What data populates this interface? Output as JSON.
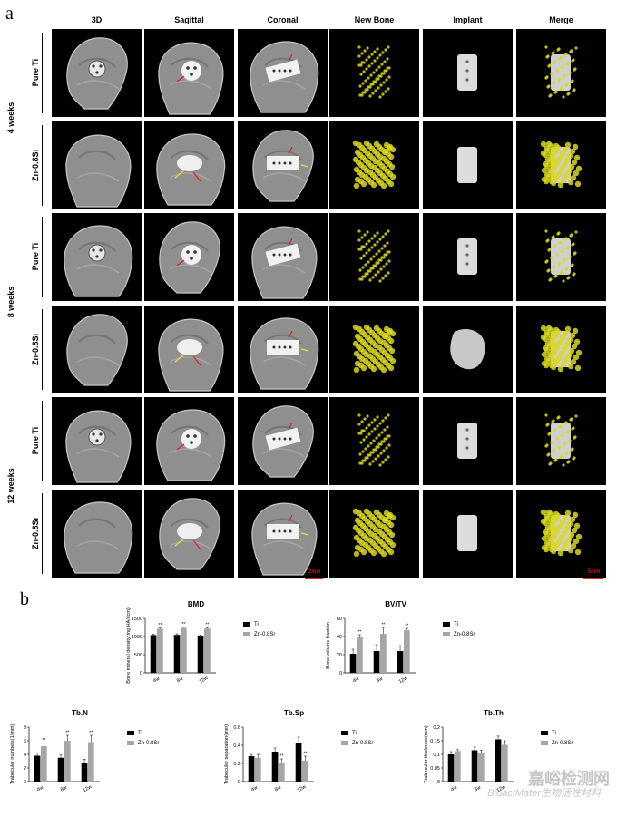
{
  "panel_a": {
    "letter": "a",
    "columns": [
      "3D",
      "Sagittal",
      "Coronal",
      "New Bone",
      "Implant",
      "Merge"
    ],
    "rows": [
      {
        "group": "4 weeks",
        "label": "Pure Ti"
      },
      {
        "group": "4 weeks",
        "label": "Zn-0.8Sr"
      },
      {
        "group": "8 weeks",
        "label": "Pure Ti"
      },
      {
        "group": "8 weeks",
        "label": "Zn-0.8Sr"
      },
      {
        "group": "12 weeks",
        "label": "Pure Ti"
      },
      {
        "group": "12 weeks",
        "label": "Zn-0.8Sr"
      }
    ],
    "weeks": [
      "4 weeks",
      "8 weeks",
      "12 weeks"
    ],
    "scale_left": "2mm",
    "scale_right": "5mm",
    "colors": {
      "bone": "#b0b0b0",
      "newbone": "#d8d820",
      "implant": "#dcdcdc",
      "arrow_red": "#e02020",
      "arrow_yellow": "#e8e030"
    }
  },
  "panel_b": {
    "letter": "b"
  },
  "chart_data": [
    {
      "type": "bar",
      "title": "BMD",
      "ylabel": "Bone mineral density(mg HA/ccm)",
      "categories": [
        "4w",
        "8w",
        "12w"
      ],
      "series": [
        {
          "name": "Ti",
          "values": [
            1040,
            1045,
            1025
          ],
          "errors": [
            25,
            30,
            15
          ],
          "color": "#000000"
        },
        {
          "name": "Zn-0.8Sr",
          "values": [
            1215,
            1240,
            1220
          ],
          "errors": [
            20,
            25,
            25
          ],
          "color": "#a6a6a6"
        }
      ],
      "significance": [
        "**",
        "**",
        "**"
      ],
      "ylim": [
        0,
        1500
      ],
      "yticks": [
        0,
        500,
        1000,
        1500
      ],
      "legend": "right"
    },
    {
      "type": "bar",
      "title": "BV/TV",
      "ylabel": "Bone volume fraction",
      "categories": [
        "4w",
        "8w",
        "12w"
      ],
      "series": [
        {
          "name": "Ti",
          "values": [
            21,
            24,
            24
          ],
          "errors": [
            5,
            7,
            6
          ],
          "color": "#000000"
        },
        {
          "name": "Zn-0.8Sr",
          "values": [
            39,
            43,
            47
          ],
          "errors": [
            3,
            7,
            2
          ],
          "color": "#a6a6a6"
        }
      ],
      "significance": [
        "**",
        "**",
        "**"
      ],
      "ylim": [
        0,
        60
      ],
      "yticks": [
        0,
        20,
        40,
        60
      ],
      "legend": "right"
    },
    {
      "type": "bar",
      "title": "Tb.N",
      "ylabel": "Trabecular numbers(1/mm)",
      "categories": [
        "4w",
        "8w",
        "12w"
      ],
      "series": [
        {
          "name": "Ti",
          "values": [
            3.8,
            3.5,
            2.8
          ],
          "errors": [
            0.4,
            0.4,
            0.5
          ],
          "color": "#000000"
        },
        {
          "name": "Zn-0.8Sr",
          "values": [
            5.2,
            6.0,
            5.8
          ],
          "errors": [
            0.5,
            0.8,
            1.0
          ],
          "color": "#a6a6a6"
        }
      ],
      "significance": [
        "**",
        "**",
        "**"
      ],
      "ylim": [
        0,
        8
      ],
      "yticks": [
        0,
        2,
        4,
        6,
        8
      ],
      "legend": "right"
    },
    {
      "type": "bar",
      "title": "Tb.Sp",
      "ylabel": "Trabecular separation(mm)",
      "categories": [
        "4w",
        "8w",
        "12w"
      ],
      "series": [
        {
          "name": "Ti",
          "values": [
            0.28,
            0.33,
            0.42
          ],
          "errors": [
            0.02,
            0.04,
            0.07
          ],
          "color": "#000000"
        },
        {
          "name": "Zn-0.8Sr",
          "values": [
            0.26,
            0.21,
            0.23
          ],
          "errors": [
            0.04,
            0.04,
            0.05
          ],
          "color": "#a6a6a6"
        }
      ],
      "significance": [
        "",
        "**",
        "**"
      ],
      "ylim": [
        0,
        0.6
      ],
      "yticks": [
        0.0,
        0.2,
        0.4,
        0.6
      ],
      "legend": "right"
    },
    {
      "type": "bar",
      "title": "Tb.Th",
      "ylabel": "Trabecular thickness(mm)",
      "categories": [
        "4w",
        "8w",
        "12w"
      ],
      "series": [
        {
          "name": "Ti",
          "values": [
            0.1,
            0.115,
            0.155
          ],
          "errors": [
            0.01,
            0.012,
            0.012
          ],
          "color": "#000000"
        },
        {
          "name": "Zn-0.8Sr",
          "values": [
            0.112,
            0.105,
            0.135
          ],
          "errors": [
            0.005,
            0.01,
            0.015
          ],
          "color": "#a6a6a6"
        }
      ],
      "significance": [
        "",
        "",
        ""
      ],
      "ylim": [
        0,
        0.2
      ],
      "yticks": [
        0.0,
        0.05,
        0.1,
        0.15,
        0.2
      ],
      "legend": "right"
    }
  ],
  "watermark": {
    "line1": "嘉峪检测网",
    "line2": "BioactMater生物活性材料"
  }
}
